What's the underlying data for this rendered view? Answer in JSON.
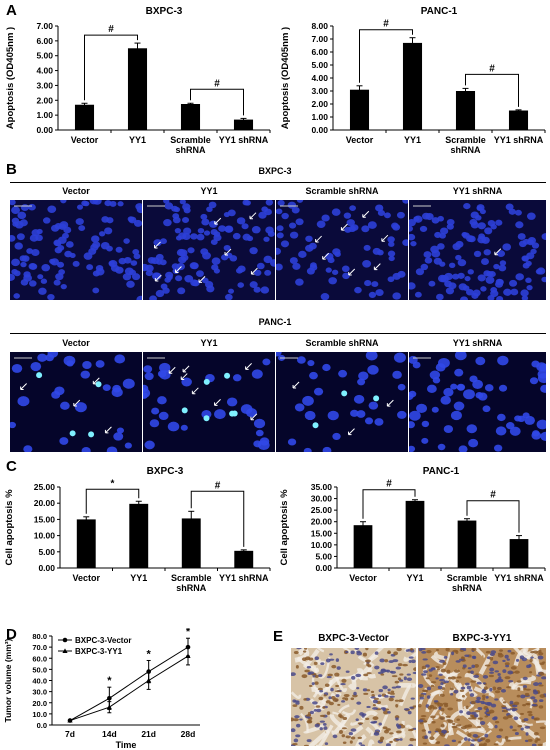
{
  "panels": {
    "a": "A",
    "b": "B",
    "c": "C",
    "d": "D",
    "e": "E"
  },
  "chart_data": [
    {
      "type": "bar",
      "title": "BXPC-3",
      "ylabel": "Apoptosis (OD405nm )",
      "ylim": [
        0,
        7
      ],
      "yticks": [
        "0.00",
        "1.00",
        "2.00",
        "3.00",
        "4.00",
        "5.00",
        "6.00",
        "7.00"
      ],
      "categories": [
        "Vector",
        "YY1",
        "Scramble shRNA",
        "YY1 shRNA"
      ],
      "values": [
        1.7,
        5.5,
        1.75,
        0.7
      ],
      "errors": [
        0.1,
        0.35,
        0.05,
        0.08
      ],
      "sig": [
        {
          "from": 0,
          "to": 1,
          "label": "#"
        },
        {
          "from": 2,
          "to": 3,
          "label": "#"
        }
      ]
    },
    {
      "type": "bar",
      "title": "PANC-1",
      "ylabel": "Apoptosis (OD405nm )",
      "ylim": [
        0,
        8
      ],
      "yticks": [
        "0.00",
        "1.00",
        "2.00",
        "3.00",
        "4.00",
        "5.00",
        "6.00",
        "7.00",
        "8.00"
      ],
      "categories": [
        "Vector",
        "YY1",
        "Scramble shRNA",
        "YY1 shRNA"
      ],
      "values": [
        3.1,
        6.7,
        3.0,
        1.5
      ],
      "errors": [
        0.3,
        0.4,
        0.2,
        0.05
      ],
      "sig": [
        {
          "from": 0,
          "to": 1,
          "label": "#"
        },
        {
          "from": 2,
          "to": 3,
          "label": "#"
        }
      ]
    },
    {
      "type": "bar",
      "title": "BXPC-3",
      "ylabel": "Cell apoptosis %",
      "ylim": [
        0,
        25
      ],
      "yticks": [
        "0.00",
        "5.00",
        "10.00",
        "15.00",
        "20.00",
        "25.00"
      ],
      "categories": [
        "Vector",
        "YY1",
        "Scramble shRNA",
        "YY1 shRNA"
      ],
      "values": [
        15.0,
        19.8,
        15.3,
        5.3
      ],
      "errors": [
        0.8,
        0.8,
        2.2,
        0.3
      ],
      "sig": [
        {
          "from": 0,
          "to": 1,
          "label": "*"
        },
        {
          "from": 2,
          "to": 3,
          "label": "#"
        }
      ]
    },
    {
      "type": "bar",
      "title": "PANC-1",
      "ylabel": "Cell apoptosis %",
      "ylim": [
        0,
        35
      ],
      "yticks": [
        "0.00",
        "5.00",
        "10.00",
        "15.00",
        "20.00",
        "25.00",
        "30.00",
        "35.00"
      ],
      "categories": [
        "Vector",
        "YY1",
        "Scramble shRNA",
        "YY1 shRNA"
      ],
      "values": [
        18.5,
        29.0,
        20.5,
        12.5
      ],
      "errors": [
        1.5,
        0.5,
        0.8,
        1.5
      ],
      "sig": [
        {
          "from": 0,
          "to": 1,
          "label": "#"
        },
        {
          "from": 2,
          "to": 3,
          "label": "#"
        }
      ]
    },
    {
      "type": "line",
      "xlabel": "Time",
      "ylabel": "Tumor volume (mm³)",
      "ylim": [
        0,
        80
      ],
      "yticks": [
        "0.0",
        "10.0",
        "20.0",
        "30.0",
        "40.0",
        "50.0",
        "60.0",
        "70.0",
        "80.0"
      ],
      "categories": [
        "7d",
        "14d",
        "21d",
        "28d"
      ],
      "series": [
        {
          "name": "BXPC-3-Vector",
          "values": [
            4,
            24,
            48,
            70
          ],
          "errors": [
            0.5,
            10,
            10,
            8
          ]
        },
        {
          "name": "BXPC-3-YY1",
          "values": [
            4,
            16,
            40,
            62
          ],
          "errors": [
            0.5,
            5,
            8,
            8
          ]
        }
      ],
      "sig": [
        {
          "at": 1,
          "label": "*"
        },
        {
          "at": 2,
          "label": "*"
        },
        {
          "at": 3,
          "label": "*"
        }
      ],
      "legend": "top-left"
    }
  ],
  "panel_b": {
    "bxpc_title": "BXPC-3",
    "panc_title": "PANC-1",
    "columns": [
      "Vector",
      "YY1",
      "Scramble shRNA",
      "YY1 shRNA"
    ]
  },
  "panel_e": {
    "left": "BXPC-3-Vector",
    "right": "BXPC-3-YY1"
  }
}
